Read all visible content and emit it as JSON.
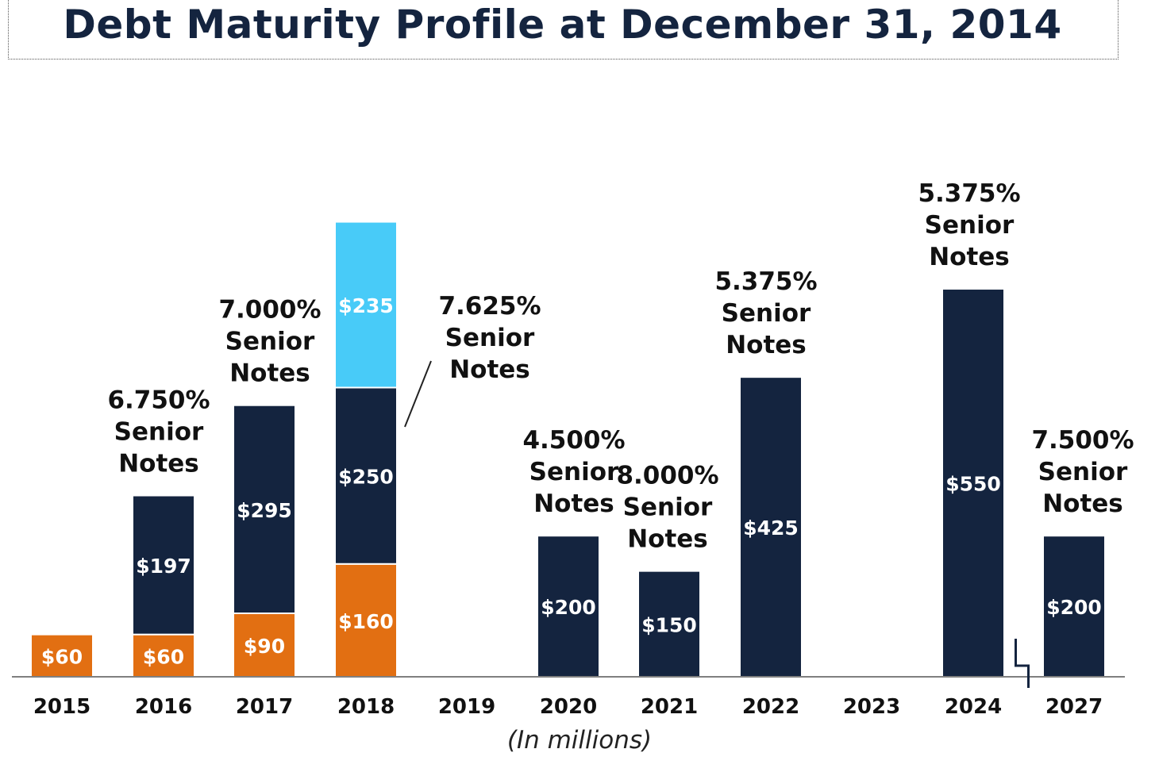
{
  "title": "Debt Maturity Profile at December 31, 2014",
  "subtitle": "(In millions)",
  "colors": {
    "navy": "#14243f",
    "orange": "#e26f12",
    "lightblue": "#48cbf8",
    "baseline": "#7f7f7f",
    "text": "#111111"
  },
  "chart_data": {
    "type": "bar",
    "stacked": true,
    "categories": [
      "2015",
      "2016",
      "2017",
      "2018",
      "2019",
      "2020",
      "2021",
      "2022",
      "2023",
      "2024",
      "2027"
    ],
    "series": [
      {
        "color": "#e26f12",
        "values": [
          60,
          60,
          90,
          160,
          0,
          0,
          0,
          0,
          0,
          0,
          0
        ],
        "labels": [
          "$60",
          "$60",
          "$90",
          "$160",
          "",
          "",
          "",
          "",
          "",
          "",
          ""
        ]
      },
      {
        "color": "#14243f",
        "values": [
          0,
          197,
          295,
          250,
          0,
          200,
          150,
          425,
          0,
          550,
          200
        ],
        "labels": [
          "",
          "$197",
          "$295",
          "$250",
          "",
          "$200",
          "$150",
          "$425",
          "",
          "$550",
          "$200"
        ]
      },
      {
        "color": "#48cbf8",
        "values": [
          0,
          0,
          0,
          235,
          0,
          0,
          0,
          0,
          0,
          0,
          0
        ],
        "labels": [
          "",
          "",
          "",
          "$235",
          "",
          "",
          "",
          "",
          "",
          "",
          ""
        ]
      }
    ],
    "annotations": [
      {
        "category": "2016",
        "lines": [
          "6.750%",
          "Senior",
          "Notes"
        ]
      },
      {
        "category": "2017",
        "lines": [
          "7.000%",
          "Senior",
          "Notes"
        ]
      },
      {
        "category": "2018",
        "lines": [
          "7.625%",
          "Senior",
          "Notes"
        ],
        "leader": true
      },
      {
        "category": "2020",
        "lines": [
          "4.500%",
          "Senior",
          "Notes"
        ]
      },
      {
        "category": "2021",
        "lines": [
          "8.000%",
          "Senior",
          "Notes"
        ]
      },
      {
        "category": "2022",
        "lines": [
          "5.375%",
          "Senior",
          "Notes"
        ]
      },
      {
        "category": "2024",
        "lines": [
          "5.375%",
          "Senior",
          "Notes"
        ]
      },
      {
        "category": "2027",
        "lines": [
          "7.500%",
          "Senior",
          "Notes"
        ]
      }
    ],
    "axis_break_between": [
      "2024",
      "2027"
    ],
    "ylim": [
      0,
      650
    ],
    "grid": false,
    "legend": "none"
  }
}
